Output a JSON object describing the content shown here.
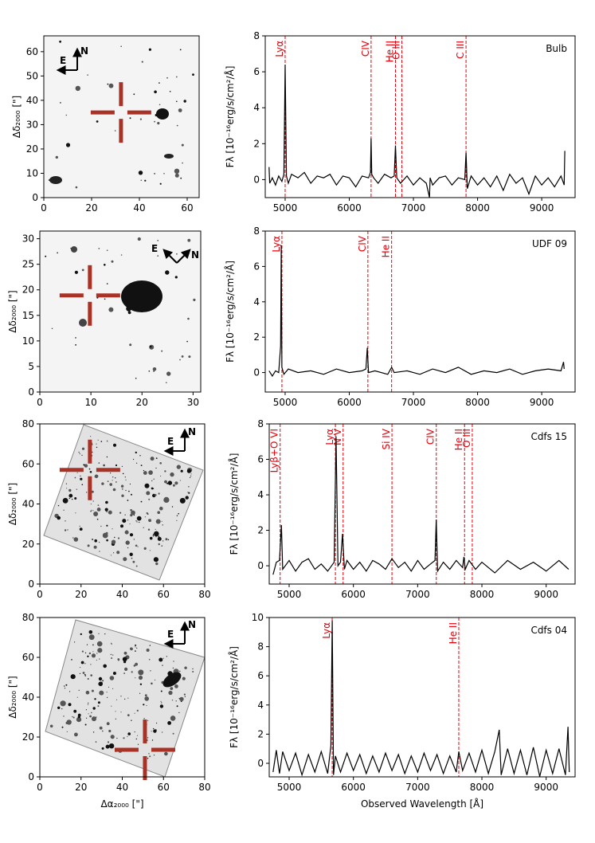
{
  "chart_data": [
    {
      "type": "image",
      "ylabel": "Δδ₂₀₀₀ [\"]",
      "xlim": [
        0,
        65
      ],
      "ylim": [
        0,
        66.5
      ],
      "xticks": [
        0,
        20,
        40,
        60
      ],
      "yticks": [
        0,
        10,
        20,
        30,
        40,
        50,
        60
      ],
      "target": [
        32.3,
        35
      ],
      "compass": [
        "E",
        "N"
      ],
      "color": "#a93226"
    },
    {
      "type": "line",
      "label": "Bulb",
      "ylabel": "Fλ [10⁻¹⁶erg/s/cm²/Å]",
      "xlim": [
        4690,
        9520
      ],
      "ylim": [
        -1,
        8
      ],
      "xticks": [
        5000,
        6000,
        7000,
        8000,
        9000
      ],
      "yticks": [
        0,
        2,
        4,
        6,
        8
      ],
      "color": "#000000",
      "line_color": "#e8000b",
      "x": [
        4750,
        4760,
        4800,
        4850,
        4900,
        4950,
        4980,
        5000,
        5020,
        5050,
        5100,
        5200,
        5300,
        5400,
        5500,
        5600,
        5700,
        5800,
        5900,
        6000,
        6100,
        6200,
        6300,
        6330,
        6340,
        6350,
        6380,
        6450,
        6550,
        6650,
        6700,
        6720,
        6740,
        6800,
        6900,
        7000,
        7100,
        7200,
        7250,
        7260,
        7300,
        7400,
        7500,
        7600,
        7700,
        7800,
        7820,
        7840,
        7900,
        8000,
        8100,
        8200,
        8300,
        8400,
        8500,
        8600,
        8700,
        8800,
        8900,
        9000,
        9100,
        9200,
        9300,
        9350,
        9360
      ],
      "values": [
        0.7,
        -0.2,
        0.1,
        -0.3,
        0.2,
        -0.1,
        0.3,
        6.4,
        0.2,
        -0.2,
        0.3,
        0.1,
        0.4,
        -0.2,
        0.2,
        0.1,
        0.3,
        -0.3,
        0.2,
        0.1,
        -0.4,
        0.2,
        0.1,
        0.4,
        2.3,
        0.3,
        0.1,
        -0.2,
        0.3,
        0.1,
        0.2,
        1.9,
        0.1,
        -0.2,
        0.2,
        -0.3,
        0.1,
        -0.2,
        -1.0,
        0.1,
        -0.3,
        0.1,
        0.2,
        -0.3,
        0.1,
        0.0,
        1.5,
        -0.5,
        0.2,
        -0.3,
        0.1,
        -0.4,
        0.2,
        -0.6,
        0.3,
        -0.2,
        0.1,
        -0.8,
        0.2,
        -0.3,
        0.1,
        -0.4,
        0.2,
        -0.3,
        1.6
      ],
      "lines": [
        {
          "x": 5000,
          "label": "Lyα"
        },
        {
          "x": 6340,
          "label": "CIV"
        },
        {
          "x": 6720,
          "label": "He II"
        },
        {
          "x": 6820,
          "label": "O III"
        },
        {
          "x": 7820,
          "label": "C III"
        }
      ]
    },
    {
      "type": "image",
      "ylabel": "Δδ₂₀₀₀ [\"]",
      "xlim": [
        0,
        31.5
      ],
      "ylim": [
        0,
        31.5
      ],
      "xticks": [
        0,
        10,
        20,
        30
      ],
      "yticks": [
        0,
        5,
        10,
        15,
        20,
        25,
        30
      ],
      "target": [
        9.8,
        18.9
      ],
      "compass": [
        "E",
        "N"
      ],
      "color": "#a93226"
    },
    {
      "type": "line",
      "label": "UDF 09",
      "ylabel": "Fλ [10⁻¹⁶erg/s/cm²/Å]",
      "xlim": [
        4690,
        9520
      ],
      "ylim": [
        -1.1,
        8
      ],
      "xticks": [
        5000,
        6000,
        7000,
        8000,
        9000
      ],
      "yticks": [
        0,
        2,
        4,
        6,
        8
      ],
      "color": "#000000",
      "line_color": "#e8000b",
      "x": [
        4750,
        4800,
        4850,
        4900,
        4930,
        4940,
        4950,
        4980,
        5050,
        5200,
        5400,
        5600,
        5800,
        6000,
        6200,
        6260,
        6280,
        6300,
        6400,
        6600,
        6660,
        6700,
        6900,
        7100,
        7300,
        7500,
        7700,
        7900,
        8100,
        8300,
        8500,
        8700,
        8900,
        9100,
        9300,
        9340,
        9350
      ],
      "values": [
        0.1,
        -0.2,
        0.1,
        0.0,
        1.5,
        7.2,
        0.3,
        -0.1,
        0.2,
        0.0,
        0.1,
        -0.1,
        0.2,
        0.0,
        0.1,
        0.2,
        1.4,
        0.0,
        0.1,
        -0.1,
        0.3,
        0.0,
        0.1,
        -0.1,
        0.2,
        0.0,
        0.3,
        -0.1,
        0.1,
        0.0,
        0.2,
        -0.1,
        0.1,
        0.2,
        0.1,
        0.6,
        0.2
      ],
      "lines": [
        {
          "x": 4950,
          "label": "Lyα"
        },
        {
          "x": 6290,
          "label": "CIV"
        },
        {
          "x": 6660,
          "label": "He II"
        }
      ]
    },
    {
      "type": "image",
      "ylabel": "Δδ₂₀₀₀ [\"]",
      "xlim": [
        0,
        80
      ],
      "ylim": [
        0,
        80
      ],
      "xticks": [
        0,
        20,
        40,
        60,
        80
      ],
      "yticks": [
        0,
        20,
        40,
        60,
        80
      ],
      "target": [
        24.3,
        57
      ],
      "compass": [
        "E",
        "N"
      ],
      "color": "#a93226"
    },
    {
      "type": "line",
      "label": "Cdfs 15",
      "ylabel": "Fλ [10⁻¹⁶erg/s/cm²/Å]",
      "xlim": [
        4690,
        9450
      ],
      "ylim": [
        -1.03,
        8
      ],
      "xticks": [
        5000,
        6000,
        7000,
        8000,
        9000
      ],
      "yticks": [
        0,
        2,
        4,
        6,
        8
      ],
      "color": "#000000",
      "line_color": "#e8000b",
      "x": [
        4750,
        4800,
        4850,
        4880,
        4900,
        5000,
        5100,
        5200,
        5300,
        5400,
        5500,
        5600,
        5700,
        5730,
        5760,
        5800,
        5830,
        5860,
        5900,
        6000,
        6100,
        6200,
        6300,
        6400,
        6500,
        6600,
        6700,
        6800,
        6900,
        7000,
        7100,
        7200,
        7270,
        7290,
        7310,
        7400,
        7500,
        7600,
        7700,
        7720,
        7740,
        7800,
        7900,
        8000,
        8200,
        8400,
        8600,
        8800,
        9000,
        9200,
        9350
      ],
      "values": [
        -0.5,
        0.2,
        0.3,
        2.3,
        -0.2,
        0.3,
        -0.3,
        0.2,
        0.4,
        -0.2,
        0.1,
        -0.3,
        0.2,
        7.3,
        0.0,
        0.2,
        1.8,
        -0.2,
        0.3,
        -0.2,
        0.2,
        -0.3,
        0.3,
        0.1,
        -0.2,
        0.4,
        -0.1,
        0.2,
        -0.3,
        0.3,
        -0.2,
        0.1,
        0.3,
        2.6,
        -0.3,
        0.2,
        -0.2,
        0.3,
        -0.1,
        0.5,
        -0.2,
        0.3,
        -0.2,
        0.2,
        -0.4,
        0.3,
        -0.2,
        0.2,
        -0.3,
        0.3,
        -0.2
      ],
      "lines": [
        {
          "x": 4860,
          "label": "Lyβ+O VI"
        },
        {
          "x": 5720,
          "label": "Lyα"
        },
        {
          "x": 5840,
          "label": "N V"
        },
        {
          "x": 6600,
          "label": "Si IV"
        },
        {
          "x": 7290,
          "label": "CIV"
        },
        {
          "x": 7730,
          "label": "He II"
        },
        {
          "x": 7850,
          "label": "O III"
        }
      ]
    },
    {
      "type": "image",
      "xlabel": "Δα₂₀₀₀ [\"]",
      "ylabel": "Δδ₂₀₀₀ [\"]",
      "xlim": [
        0,
        80
      ],
      "ylim": [
        0,
        80
      ],
      "xticks": [
        0,
        20,
        40,
        60,
        80
      ],
      "yticks": [
        0,
        20,
        40,
        60,
        80
      ],
      "target": [
        51,
        13.6
      ],
      "compass": [
        "E",
        "N"
      ],
      "color": "#a93226"
    },
    {
      "type": "line",
      "label": "Cdfs 04",
      "xlabel": "Observed Wavelength [Å]",
      "ylabel": "Fλ [10⁻¹⁶erg/s/cm²/Å]",
      "xlim": [
        4690,
        9450
      ],
      "ylim": [
        -0.93,
        10
      ],
      "xticks": [
        5000,
        6000,
        7000,
        8000,
        9000
      ],
      "yticks": [
        0,
        2,
        4,
        6,
        8,
        10
      ],
      "color": "#000000",
      "line_color": "#e8000b",
      "x": [
        4750,
        4800,
        4850,
        4900,
        5000,
        5100,
        5200,
        5300,
        5400,
        5500,
        5600,
        5650,
        5670,
        5690,
        5720,
        5800,
        5900,
        6000,
        6100,
        6200,
        6300,
        6400,
        6500,
        6600,
        6700,
        6800,
        6900,
        7000,
        7100,
        7200,
        7300,
        7400,
        7500,
        7600,
        7640,
        7700,
        7800,
        7900,
        8000,
        8100,
        8200,
        8270,
        8300,
        8400,
        8500,
        8600,
        8700,
        8800,
        8900,
        9000,
        9100,
        9200,
        9300,
        9340,
        9360
      ],
      "values": [
        -0.6,
        0.9,
        -0.7,
        0.8,
        -0.5,
        0.7,
        -0.8,
        0.6,
        -0.6,
        0.8,
        -0.7,
        1.2,
        9.8,
        -0.8,
        0.5,
        -0.6,
        0.7,
        -0.5,
        0.6,
        -0.7,
        0.5,
        -0.6,
        0.7,
        -0.5,
        0.6,
        -0.7,
        0.5,
        -0.6,
        0.7,
        -0.5,
        0.6,
        -0.7,
        0.5,
        -0.6,
        0.8,
        -0.5,
        0.7,
        -0.6,
        0.9,
        -0.7,
        0.8,
        2.3,
        -0.8,
        1.0,
        -0.7,
        0.9,
        -0.8,
        1.1,
        -0.9,
        0.9,
        -0.7,
        1.0,
        -0.8,
        2.5,
        -0.6
      ],
      "lines": [
        {
          "x": 5670,
          "label": "Lyα"
        },
        {
          "x": 7640,
          "label": "He II"
        }
      ]
    }
  ]
}
